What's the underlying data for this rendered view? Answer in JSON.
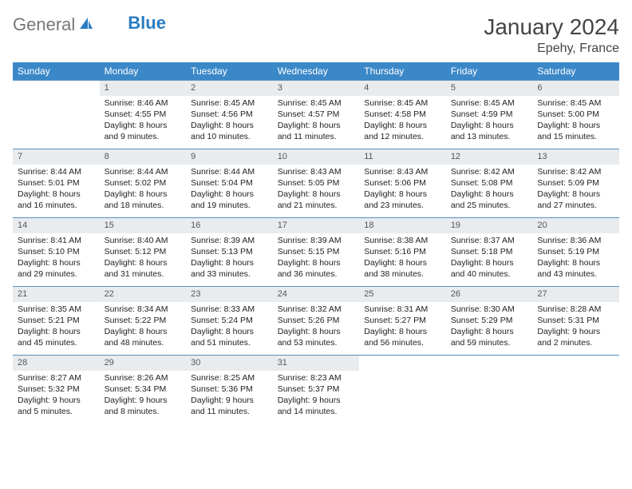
{
  "brand": {
    "part1": "General",
    "part2": "Blue"
  },
  "title": "January 2024",
  "location": "Epehy, France",
  "colors": {
    "header_bg": "#3b88c8",
    "header_text": "#ffffff",
    "daynum_bg": "#e9ecef",
    "row_border": "#5a8fbf",
    "brand_blue": "#2b7cc2"
  },
  "weekdays": [
    "Sunday",
    "Monday",
    "Tuesday",
    "Wednesday",
    "Thursday",
    "Friday",
    "Saturday"
  ],
  "weeks": [
    [
      null,
      {
        "n": "1",
        "sr": "Sunrise: 8:46 AM",
        "ss": "Sunset: 4:55 PM",
        "dl": "Daylight: 8 hours and 9 minutes."
      },
      {
        "n": "2",
        "sr": "Sunrise: 8:45 AM",
        "ss": "Sunset: 4:56 PM",
        "dl": "Daylight: 8 hours and 10 minutes."
      },
      {
        "n": "3",
        "sr": "Sunrise: 8:45 AM",
        "ss": "Sunset: 4:57 PM",
        "dl": "Daylight: 8 hours and 11 minutes."
      },
      {
        "n": "4",
        "sr": "Sunrise: 8:45 AM",
        "ss": "Sunset: 4:58 PM",
        "dl": "Daylight: 8 hours and 12 minutes."
      },
      {
        "n": "5",
        "sr": "Sunrise: 8:45 AM",
        "ss": "Sunset: 4:59 PM",
        "dl": "Daylight: 8 hours and 13 minutes."
      },
      {
        "n": "6",
        "sr": "Sunrise: 8:45 AM",
        "ss": "Sunset: 5:00 PM",
        "dl": "Daylight: 8 hours and 15 minutes."
      }
    ],
    [
      {
        "n": "7",
        "sr": "Sunrise: 8:44 AM",
        "ss": "Sunset: 5:01 PM",
        "dl": "Daylight: 8 hours and 16 minutes."
      },
      {
        "n": "8",
        "sr": "Sunrise: 8:44 AM",
        "ss": "Sunset: 5:02 PM",
        "dl": "Daylight: 8 hours and 18 minutes."
      },
      {
        "n": "9",
        "sr": "Sunrise: 8:44 AM",
        "ss": "Sunset: 5:04 PM",
        "dl": "Daylight: 8 hours and 19 minutes."
      },
      {
        "n": "10",
        "sr": "Sunrise: 8:43 AM",
        "ss": "Sunset: 5:05 PM",
        "dl": "Daylight: 8 hours and 21 minutes."
      },
      {
        "n": "11",
        "sr": "Sunrise: 8:43 AM",
        "ss": "Sunset: 5:06 PM",
        "dl": "Daylight: 8 hours and 23 minutes."
      },
      {
        "n": "12",
        "sr": "Sunrise: 8:42 AM",
        "ss": "Sunset: 5:08 PM",
        "dl": "Daylight: 8 hours and 25 minutes."
      },
      {
        "n": "13",
        "sr": "Sunrise: 8:42 AM",
        "ss": "Sunset: 5:09 PM",
        "dl": "Daylight: 8 hours and 27 minutes."
      }
    ],
    [
      {
        "n": "14",
        "sr": "Sunrise: 8:41 AM",
        "ss": "Sunset: 5:10 PM",
        "dl": "Daylight: 8 hours and 29 minutes."
      },
      {
        "n": "15",
        "sr": "Sunrise: 8:40 AM",
        "ss": "Sunset: 5:12 PM",
        "dl": "Daylight: 8 hours and 31 minutes."
      },
      {
        "n": "16",
        "sr": "Sunrise: 8:39 AM",
        "ss": "Sunset: 5:13 PM",
        "dl": "Daylight: 8 hours and 33 minutes."
      },
      {
        "n": "17",
        "sr": "Sunrise: 8:39 AM",
        "ss": "Sunset: 5:15 PM",
        "dl": "Daylight: 8 hours and 36 minutes."
      },
      {
        "n": "18",
        "sr": "Sunrise: 8:38 AM",
        "ss": "Sunset: 5:16 PM",
        "dl": "Daylight: 8 hours and 38 minutes."
      },
      {
        "n": "19",
        "sr": "Sunrise: 8:37 AM",
        "ss": "Sunset: 5:18 PM",
        "dl": "Daylight: 8 hours and 40 minutes."
      },
      {
        "n": "20",
        "sr": "Sunrise: 8:36 AM",
        "ss": "Sunset: 5:19 PM",
        "dl": "Daylight: 8 hours and 43 minutes."
      }
    ],
    [
      {
        "n": "21",
        "sr": "Sunrise: 8:35 AM",
        "ss": "Sunset: 5:21 PM",
        "dl": "Daylight: 8 hours and 45 minutes."
      },
      {
        "n": "22",
        "sr": "Sunrise: 8:34 AM",
        "ss": "Sunset: 5:22 PM",
        "dl": "Daylight: 8 hours and 48 minutes."
      },
      {
        "n": "23",
        "sr": "Sunrise: 8:33 AM",
        "ss": "Sunset: 5:24 PM",
        "dl": "Daylight: 8 hours and 51 minutes."
      },
      {
        "n": "24",
        "sr": "Sunrise: 8:32 AM",
        "ss": "Sunset: 5:26 PM",
        "dl": "Daylight: 8 hours and 53 minutes."
      },
      {
        "n": "25",
        "sr": "Sunrise: 8:31 AM",
        "ss": "Sunset: 5:27 PM",
        "dl": "Daylight: 8 hours and 56 minutes."
      },
      {
        "n": "26",
        "sr": "Sunrise: 8:30 AM",
        "ss": "Sunset: 5:29 PM",
        "dl": "Daylight: 8 hours and 59 minutes."
      },
      {
        "n": "27",
        "sr": "Sunrise: 8:28 AM",
        "ss": "Sunset: 5:31 PM",
        "dl": "Daylight: 9 hours and 2 minutes."
      }
    ],
    [
      {
        "n": "28",
        "sr": "Sunrise: 8:27 AM",
        "ss": "Sunset: 5:32 PM",
        "dl": "Daylight: 9 hours and 5 minutes."
      },
      {
        "n": "29",
        "sr": "Sunrise: 8:26 AM",
        "ss": "Sunset: 5:34 PM",
        "dl": "Daylight: 9 hours and 8 minutes."
      },
      {
        "n": "30",
        "sr": "Sunrise: 8:25 AM",
        "ss": "Sunset: 5:36 PM",
        "dl": "Daylight: 9 hours and 11 minutes."
      },
      {
        "n": "31",
        "sr": "Sunrise: 8:23 AM",
        "ss": "Sunset: 5:37 PM",
        "dl": "Daylight: 9 hours and 14 minutes."
      },
      null,
      null,
      null
    ]
  ]
}
